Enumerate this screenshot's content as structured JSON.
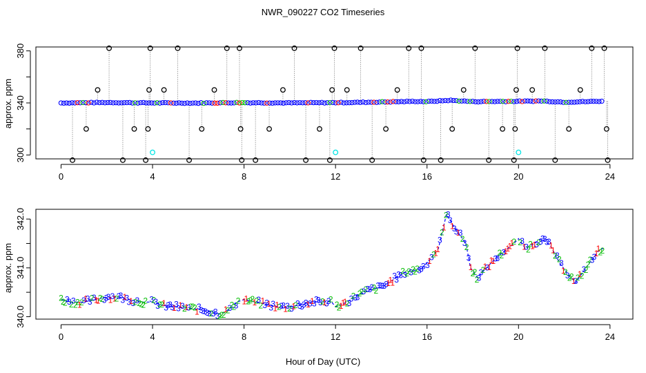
{
  "title": "NWR_090227  CO2 Timeseries",
  "xlabel": "Hour of Day (UTC)",
  "chart_data": [
    {
      "type": "scatter",
      "ylabel": "approx. ppm",
      "xlim": [
        -1.1,
        25
      ],
      "ylim": [
        297,
        383
      ],
      "xticks": [
        0,
        4,
        8,
        12,
        16,
        20,
        24
      ],
      "yticks": [
        300,
        340,
        380
      ],
      "ytick_labels": [
        "300",
        "340",
        "380"
      ],
      "grid": false,
      "colors": {
        "main": "#0000ff",
        "reference": "#000000",
        "calibration": "#00e5e5",
        "flag1": "#ff0000",
        "flag2": "#00bb00",
        "connector": "#888888"
      },
      "baseline": [
        [
          0.0,
          340.0
        ],
        [
          2.0,
          340.3
        ],
        [
          4.0,
          340.0
        ],
        [
          6.0,
          339.9
        ],
        [
          7.7,
          340.2
        ],
        [
          8.0,
          340.2
        ],
        [
          10.0,
          340.0
        ],
        [
          11.9,
          340.2
        ],
        [
          12.0,
          340.2
        ],
        [
          13.0,
          340.4
        ],
        [
          14.0,
          340.7
        ],
        [
          15.5,
          341.2
        ],
        [
          16.0,
          341.0
        ],
        [
          17.0,
          342.0
        ],
        [
          18.0,
          341.0
        ],
        [
          19.5,
          341.2
        ],
        [
          20.0,
          341.2
        ],
        [
          21.0,
          341.5
        ],
        [
          22.0,
          340.6
        ],
        [
          23.0,
          341.0
        ],
        [
          23.7,
          341.4
        ]
      ],
      "reference_points": [
        [
          0.5,
          296
        ],
        [
          1.1,
          320
        ],
        [
          1.6,
          350
        ],
        [
          2.1,
          382
        ],
        [
          2.7,
          296
        ],
        [
          3.2,
          320
        ],
        [
          3.7,
          296
        ],
        [
          3.8,
          320
        ],
        [
          3.85,
          350
        ],
        [
          3.9,
          382
        ],
        [
          4.5,
          350
        ],
        [
          5.1,
          382
        ],
        [
          5.6,
          296
        ],
        [
          6.15,
          320
        ],
        [
          6.7,
          350
        ],
        [
          7.25,
          382
        ],
        [
          7.8,
          382
        ],
        [
          7.85,
          320
        ],
        [
          7.9,
          296
        ],
        [
          8.5,
          296
        ],
        [
          9.1,
          320
        ],
        [
          9.7,
          350
        ],
        [
          10.2,
          382
        ],
        [
          10.7,
          296
        ],
        [
          11.3,
          320
        ],
        [
          11.75,
          296
        ],
        [
          11.85,
          350
        ],
        [
          11.95,
          382
        ],
        [
          12.5,
          350
        ],
        [
          13.1,
          382
        ],
        [
          13.6,
          296
        ],
        [
          14.2,
          320
        ],
        [
          14.7,
          350
        ],
        [
          15.2,
          382
        ],
        [
          15.75,
          382
        ],
        [
          15.85,
          296
        ],
        [
          16.6,
          296
        ],
        [
          17.1,
          320
        ],
        [
          17.6,
          350
        ],
        [
          18.1,
          382
        ],
        [
          18.7,
          296
        ],
        [
          19.3,
          320
        ],
        [
          19.8,
          296
        ],
        [
          19.85,
          320
        ],
        [
          19.9,
          350
        ],
        [
          19.95,
          382
        ],
        [
          20.6,
          350
        ],
        [
          21.15,
          382
        ],
        [
          21.6,
          296
        ],
        [
          22.2,
          320
        ],
        [
          22.7,
          350
        ],
        [
          23.2,
          382
        ],
        [
          23.75,
          382
        ],
        [
          23.85,
          320
        ],
        [
          23.9,
          296
        ]
      ],
      "calibration_points": [
        [
          4.0,
          302
        ],
        [
          12.0,
          302
        ],
        [
          20.0,
          302
        ]
      ]
    },
    {
      "type": "scatter",
      "ylabel": "approx. ppm",
      "xlim": [
        -1.1,
        25
      ],
      "ylim": [
        339.95,
        342.2
      ],
      "xticks": [
        0,
        4,
        8,
        12,
        16,
        20,
        24
      ],
      "yticks": [
        340.0,
        341.0,
        342.0
      ],
      "ytick_labels": [
        "340.0",
        "341.0",
        "342.0"
      ],
      "grid": false,
      "point_labels": [
        "1",
        "2",
        "3"
      ],
      "colors": {
        "line": "#0000ff",
        "1": "#ff0000",
        "2": "#00bb00",
        "3": "#0000ff"
      },
      "series": [
        [
          0.0,
          340.35
        ],
        [
          0.5,
          340.3
        ],
        [
          1.0,
          340.3
        ],
        [
          1.5,
          340.35
        ],
        [
          2.0,
          340.4
        ],
        [
          2.5,
          340.4
        ],
        [
          3.0,
          340.35
        ],
        [
          3.5,
          340.3
        ],
        [
          3.7,
          340.3
        ],
        [
          4.0,
          340.3
        ],
        [
          4.5,
          340.22
        ],
        [
          5.0,
          340.2
        ],
        [
          5.5,
          340.18
        ],
        [
          6.0,
          340.15
        ],
        [
          6.5,
          340.1
        ],
        [
          7.0,
          340.05
        ],
        [
          7.5,
          340.2
        ],
        [
          7.7,
          340.3
        ],
        [
          8.0,
          340.35
        ],
        [
          8.5,
          340.3
        ],
        [
          9.0,
          340.25
        ],
        [
          9.5,
          340.2
        ],
        [
          10.0,
          340.2
        ],
        [
          10.5,
          340.25
        ],
        [
          11.0,
          340.3
        ],
        [
          11.5,
          340.3
        ],
        [
          11.8,
          340.32
        ],
        [
          12.0,
          340.2
        ],
        [
          12.5,
          340.3
        ],
        [
          13.0,
          340.45
        ],
        [
          13.5,
          340.55
        ],
        [
          14.0,
          340.6
        ],
        [
          14.5,
          340.75
        ],
        [
          15.0,
          340.9
        ],
        [
          15.5,
          340.95
        ],
        [
          15.8,
          341.0
        ],
        [
          16.0,
          341.1
        ],
        [
          16.5,
          341.4
        ],
        [
          16.85,
          342.1
        ],
        [
          17.1,
          341.9
        ],
        [
          17.4,
          341.7
        ],
        [
          17.7,
          341.5
        ],
        [
          17.9,
          341.0
        ],
        [
          18.2,
          340.8
        ],
        [
          18.6,
          341.0
        ],
        [
          19.0,
          341.2
        ],
        [
          19.4,
          341.35
        ],
        [
          19.8,
          341.5
        ],
        [
          20.0,
          341.6
        ],
        [
          20.3,
          341.4
        ],
        [
          20.7,
          341.5
        ],
        [
          21.0,
          341.6
        ],
        [
          21.4,
          341.45
        ],
        [
          21.8,
          341.1
        ],
        [
          22.2,
          340.85
        ],
        [
          22.5,
          340.7
        ],
        [
          22.8,
          340.9
        ],
        [
          23.1,
          341.1
        ],
        [
          23.5,
          341.35
        ],
        [
          23.7,
          341.4
        ]
      ]
    }
  ]
}
